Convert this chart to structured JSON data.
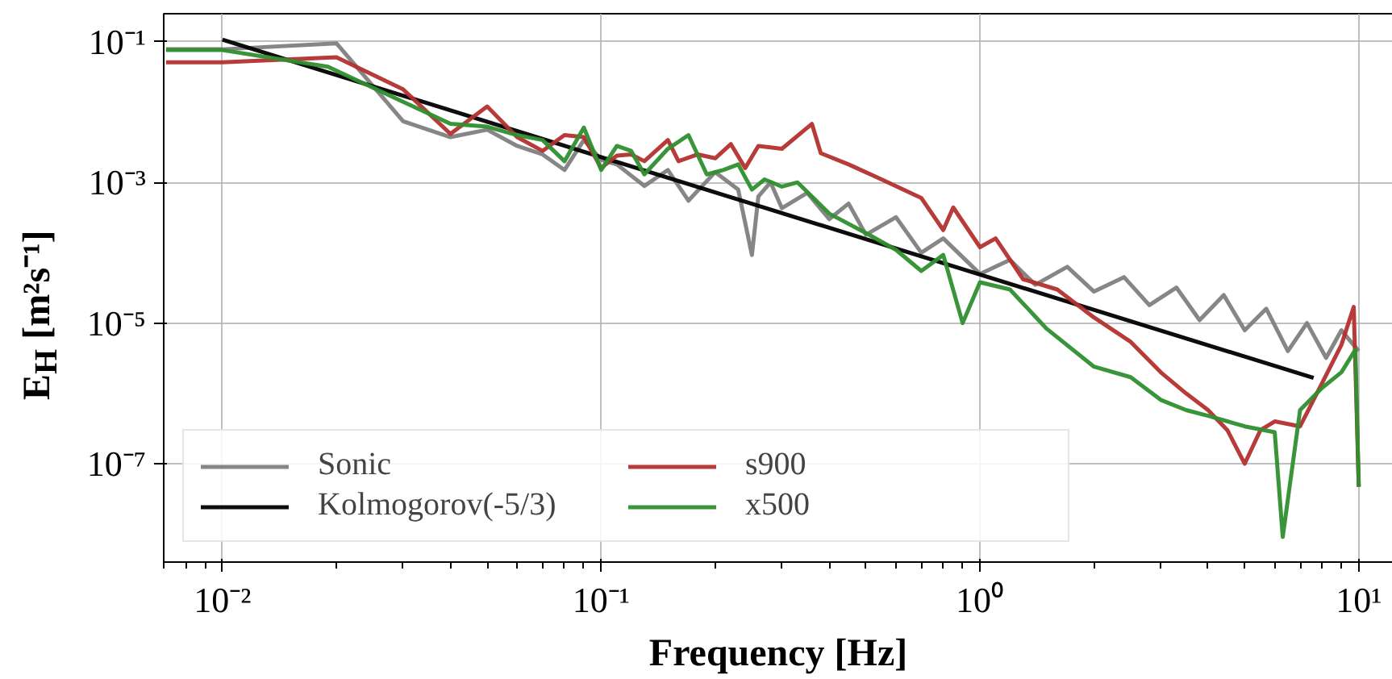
{
  "chart_data": {
    "type": "line",
    "xlabel": "Frequency [Hz]",
    "ylabel": "E$_{H}$ [m²s⁻¹]",
    "log": "xy",
    "grid": true,
    "legend": "bottom left",
    "line_style": "solid",
    "xlim": [
      0.007,
      12.3
    ],
    "ylim": [
      4e-09,
      0.25
    ],
    "xticks": [
      {
        "value": 0.01,
        "label": "10⁻²"
      },
      {
        "value": 0.1,
        "label": "10⁻¹"
      },
      {
        "value": 1,
        "label": "10⁰"
      },
      {
        "value": 10,
        "label": "10¹"
      }
    ],
    "yticks": [
      {
        "value": 1e-07,
        "label": "10⁻⁷"
      },
      {
        "value": 1e-05,
        "label": "10⁻⁵"
      },
      {
        "value": 0.001,
        "label": "10⁻³"
      },
      {
        "value": 0.1,
        "label": "10⁻¹"
      }
    ],
    "series": [
      {
        "name": "Sonic",
        "color": "#808080",
        "x": [
          0.0071,
          0.01,
          0.02,
          0.03,
          0.04,
          0.05,
          0.06,
          0.07,
          0.08,
          0.09,
          0.1,
          0.11,
          0.13,
          0.15,
          0.17,
          0.2,
          0.23,
          0.25,
          0.26,
          0.28,
          0.3,
          0.35,
          0.4,
          0.45,
          0.5,
          0.6,
          0.7,
          0.8,
          1.0,
          1.2,
          1.4,
          1.7,
          2.0,
          2.4,
          2.8,
          3.3,
          3.8,
          4.4,
          5.0,
          5.7,
          6.5,
          7.3,
          8.2,
          9.0,
          10.0
        ],
        "values": [
          0.078,
          0.078,
          0.095,
          0.0074,
          0.0044,
          0.0056,
          0.0033,
          0.0025,
          0.0015,
          0.004,
          0.0021,
          0.0018,
          0.00089,
          0.0015,
          0.00055,
          0.0014,
          0.00079,
          9.3e-05,
          0.00063,
          0.001,
          0.00043,
          0.00071,
          0.0003,
          0.0005,
          0.00018,
          0.00032,
          0.0001,
          0.00016,
          5e-05,
          7.9e-05,
          3.5e-05,
          6.3e-05,
          2.8e-05,
          4.5e-05,
          1.8e-05,
          3.2e-05,
          1.1e-05,
          2.5e-05,
          7.9e-06,
          1.6e-05,
          4e-06,
          1e-05,
          3.2e-06,
          7.9e-06,
          4e-06
        ]
      },
      {
        "name": "Kolmogorov(-5/3)",
        "color": "#000000",
        "x": [
          0.01,
          7.6
        ],
        "values": [
          0.107,
          1.66e-06
        ]
      },
      {
        "name": "s900",
        "color": "#b3302e",
        "x": [
          0.0071,
          0.01,
          0.02,
          0.03,
          0.04,
          0.05,
          0.06,
          0.07,
          0.08,
          0.09,
          0.1,
          0.11,
          0.12,
          0.13,
          0.15,
          0.16,
          0.18,
          0.2,
          0.22,
          0.24,
          0.26,
          0.3,
          0.36,
          0.38,
          0.45,
          0.55,
          0.7,
          0.8,
          0.85,
          1.0,
          1.1,
          1.3,
          1.6,
          2.0,
          2.5,
          3.0,
          3.5,
          4.0,
          4.5,
          5.0,
          5.5,
          6.0,
          7.0,
          8.0,
          9.0,
          9.7,
          10.0
        ],
        "values": [
          0.051,
          0.051,
          0.06,
          0.021,
          0.0049,
          0.012,
          0.0044,
          0.0028,
          0.0047,
          0.0044,
          0.0016,
          0.0024,
          0.0025,
          0.002,
          0.004,
          0.002,
          0.0025,
          0.0022,
          0.0035,
          0.0016,
          0.0033,
          0.003,
          0.0068,
          0.0026,
          0.0018,
          0.0011,
          0.0006,
          0.00021,
          0.00044,
          0.00012,
          0.00016,
          4.2e-05,
          3e-05,
          1.2e-05,
          5.4e-06,
          2e-06,
          1e-06,
          5.8e-07,
          3e-07,
          1e-07,
          3e-07,
          4e-07,
          3.4e-07,
          1.4e-06,
          4.9e-06,
          1.7e-05,
          4.7e-08
        ]
      },
      {
        "name": "x500",
        "color": "#2f8f2f",
        "x": [
          0.0071,
          0.01,
          0.019,
          0.03,
          0.04,
          0.05,
          0.06,
          0.07,
          0.08,
          0.09,
          0.1,
          0.11,
          0.12,
          0.13,
          0.15,
          0.17,
          0.19,
          0.21,
          0.23,
          0.25,
          0.27,
          0.3,
          0.33,
          0.4,
          0.5,
          0.6,
          0.7,
          0.8,
          0.9,
          1.0,
          1.2,
          1.5,
          2.0,
          2.5,
          3.0,
          3.5,
          4.0,
          5.0,
          6.0,
          6.3,
          7.0,
          8.0,
          9.0,
          9.8,
          10.0
        ],
        "values": [
          0.076,
          0.076,
          0.044,
          0.014,
          0.0068,
          0.0062,
          0.0047,
          0.004,
          0.002,
          0.006,
          0.0015,
          0.0033,
          0.0028,
          0.0013,
          0.003,
          0.0047,
          0.0013,
          0.0015,
          0.0018,
          0.00079,
          0.0011,
          0.00087,
          0.001,
          0.00036,
          0.00019,
          0.00011,
          5.5e-05,
          9.3e-05,
          1e-05,
          3.8e-05,
          3e-05,
          8.3e-06,
          2.4e-06,
          1.7e-06,
          8.1e-07,
          5.8e-07,
          4.8e-07,
          3.4e-07,
          2.8e-07,
          9.1e-09,
          5.8e-07,
          1.2e-06,
          2e-06,
          4.2e-06,
          4.7e-08
        ]
      }
    ]
  }
}
